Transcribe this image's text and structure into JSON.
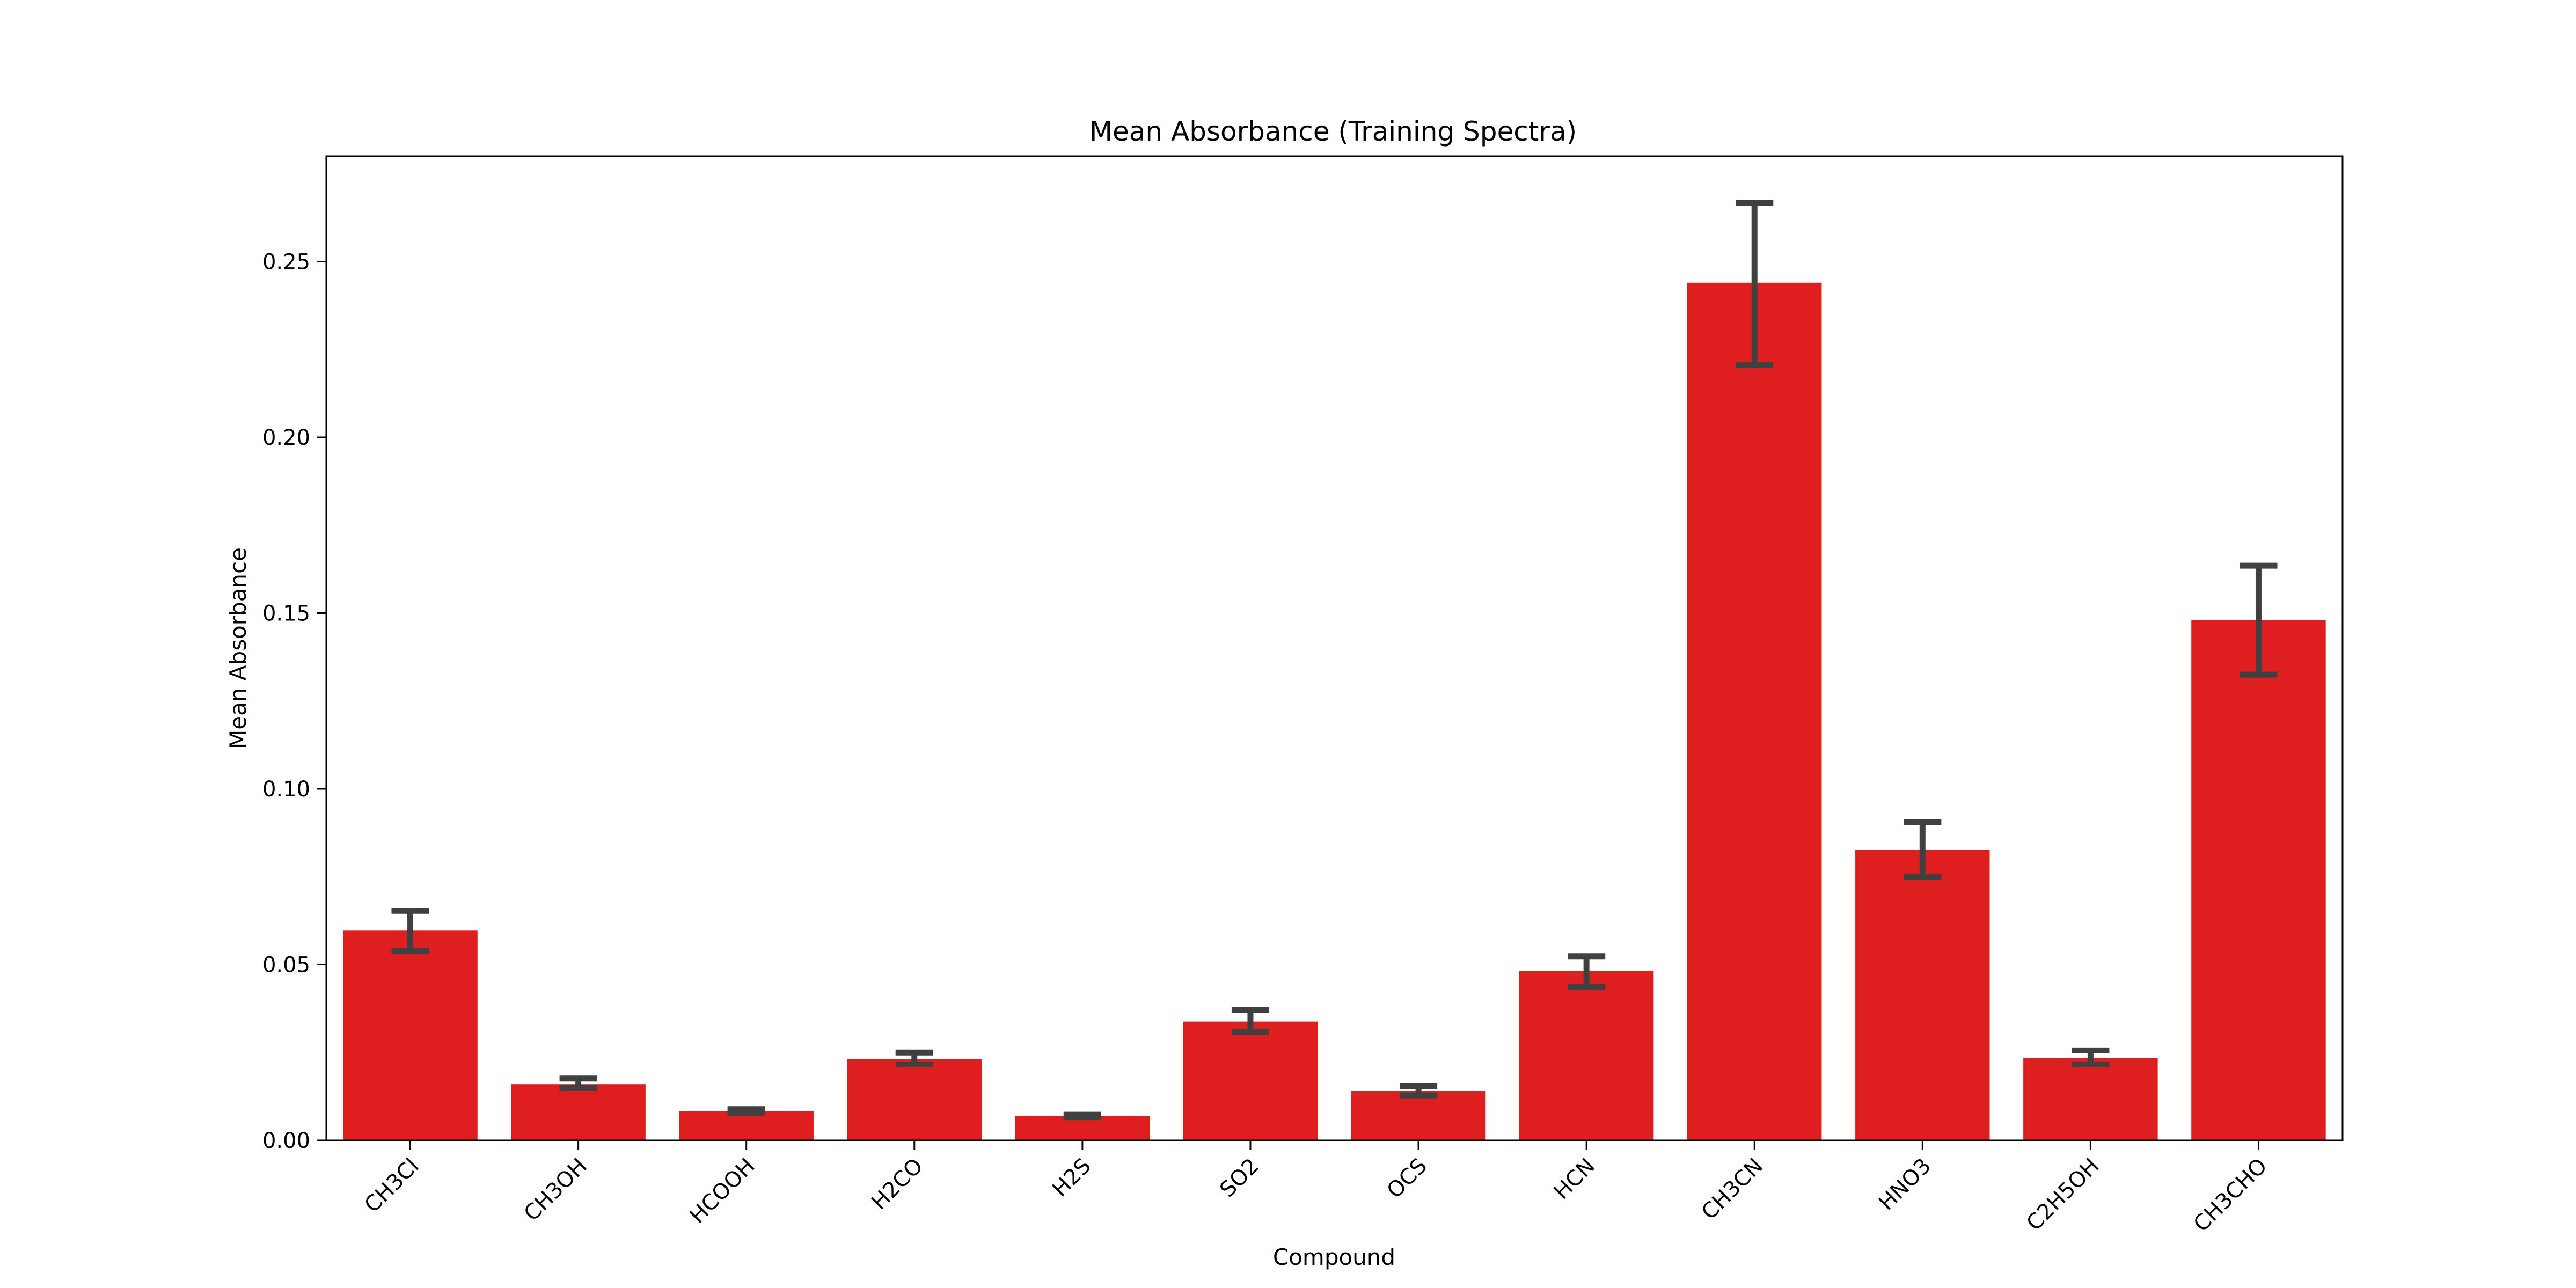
{
  "chart_data": {
    "type": "bar",
    "title": "Mean Absorbance (Training Spectra)",
    "xlabel": "Compound",
    "ylabel": "Mean Absorbance",
    "ylim": [
      0,
      0.28
    ],
    "yticks": [
      "0.00",
      "0.05",
      "0.10",
      "0.15",
      "0.20",
      "0.25"
    ],
    "ytick_values": [
      0,
      0.05,
      0.1,
      0.15,
      0.2,
      0.25
    ],
    "categories": [
      "CH3Cl",
      "CH3OH",
      "HCOOH",
      "H2CO",
      "H2S",
      "SO2",
      "OCS",
      "HCN",
      "CH3CN",
      "HNO3",
      "C2H5OH",
      "CH3CHO"
    ],
    "values": [
      0.0598,
      0.016,
      0.0083,
      0.0231,
      0.007,
      0.0338,
      0.0141,
      0.0481,
      0.244,
      0.0826,
      0.0235,
      0.148
    ],
    "error_low": [
      0.0539,
      0.0149,
      0.0078,
      0.0216,
      0.0066,
      0.0308,
      0.0128,
      0.0437,
      0.2206,
      0.075,
      0.0216,
      0.1325
    ],
    "error_high": [
      0.0653,
      0.0176,
      0.0089,
      0.025,
      0.0073,
      0.0371,
      0.0155,
      0.0524,
      0.2668,
      0.0906,
      0.0256,
      0.1635
    ],
    "bar_color": "#df1f1f",
    "error_color": "#404040",
    "grid": false,
    "legend": "none"
  }
}
